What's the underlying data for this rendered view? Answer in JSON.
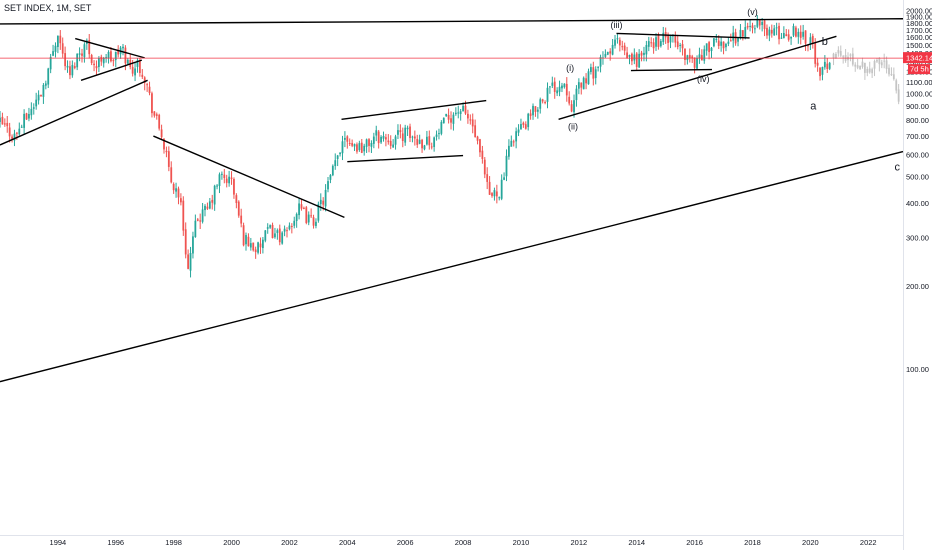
{
  "header": {
    "title": "SET INDEX, 1M, SET"
  },
  "price_tag": {
    "price": "1342.14",
    "countdown": "7d 5h",
    "color": "#f23645"
  },
  "colors": {
    "up": "#26a69a",
    "down": "#ef5350",
    "projection": "#c4c4c4",
    "trendline": "#000000",
    "axis_text": "#131722",
    "price_line": "#f23645"
  },
  "chart_data": {
    "type": "candlestick",
    "title": "SET INDEX, 1M, SET",
    "xlabel": "",
    "ylabel": "",
    "x_tick_labels": [
      "1994",
      "1996",
      "1998",
      "2000",
      "2002",
      "2004",
      "2006",
      "2008",
      "2010",
      "2012",
      "2014",
      "2016",
      "2018",
      "2020",
      "2022"
    ],
    "y_tick_labels": [
      "100.00",
      "200.00",
      "300.00",
      "400.00",
      "500.00",
      "600.00",
      "700.00",
      "800.00",
      "900.00",
      "1000.00",
      "1100.00",
      "1200.00",
      "1300.00",
      "1400.00",
      "1500.00",
      "1600.00",
      "1700.00",
      "1800.00",
      "1900.00",
      "2000.00"
    ],
    "ylim": [
      25,
      2040
    ],
    "xlim": [
      1992.0,
      2023.2
    ],
    "last_price": 1342.14,
    "series": [
      {
        "kind": "price",
        "points": [
          [
            1992.0,
            780
          ],
          [
            1992.5,
            700
          ],
          [
            1993.0,
            850
          ],
          [
            1993.4,
            1000
          ],
          [
            1993.7,
            1250
          ],
          [
            1994.0,
            1690
          ],
          [
            1994.15,
            1400
          ],
          [
            1994.4,
            1150
          ],
          [
            1994.7,
            1400
          ],
          [
            1995.0,
            1520
          ],
          [
            1995.3,
            1230
          ],
          [
            1995.6,
            1400
          ],
          [
            1995.9,
            1320
          ],
          [
            1996.2,
            1460
          ],
          [
            1996.5,
            1230
          ],
          [
            1996.8,
            1280
          ],
          [
            1997.0,
            1150
          ],
          [
            1997.3,
            850
          ],
          [
            1997.6,
            700
          ],
          [
            1997.9,
            480
          ],
          [
            1998.2,
            430
          ],
          [
            1998.5,
            230
          ],
          [
            1998.8,
            350
          ],
          [
            1999.2,
            380
          ],
          [
            1999.6,
            500
          ],
          [
            2000.0,
            480
          ],
          [
            2000.4,
            300
          ],
          [
            2000.9,
            270
          ],
          [
            2001.3,
            320
          ],
          [
            2001.8,
            300
          ],
          [
            2002.3,
            380
          ],
          [
            2002.8,
            340
          ],
          [
            2003.2,
            420
          ],
          [
            2003.6,
            560
          ],
          [
            2003.9,
            720
          ],
          [
            2004.2,
            650
          ],
          [
            2004.6,
            640
          ],
          [
            2005.0,
            700
          ],
          [
            2005.5,
            680
          ],
          [
            2006.0,
            720
          ],
          [
            2006.5,
            670
          ],
          [
            2007.0,
            680
          ],
          [
            2007.5,
            820
          ],
          [
            2007.9,
            880
          ],
          [
            2008.3,
            780
          ],
          [
            2008.7,
            530
          ],
          [
            2008.9,
            420
          ],
          [
            2009.3,
            450
          ],
          [
            2009.7,
            700
          ],
          [
            2010.2,
            780
          ],
          [
            2010.6,
            920
          ],
          [
            2011.0,
            1040
          ],
          [
            2011.5,
            1100
          ],
          [
            2011.8,
            880
          ],
          [
            2012.0,
            1070
          ],
          [
            2012.5,
            1200
          ],
          [
            2012.9,
            1340
          ],
          [
            2013.3,
            1560
          ],
          [
            2013.6,
            1350
          ],
          [
            2014.0,
            1320
          ],
          [
            2014.5,
            1520
          ],
          [
            2014.9,
            1580
          ],
          [
            2015.3,
            1540
          ],
          [
            2015.7,
            1380
          ],
          [
            2016.0,
            1300
          ],
          [
            2016.5,
            1480
          ],
          [
            2016.9,
            1520
          ],
          [
            2017.3,
            1580
          ],
          [
            2017.8,
            1700
          ],
          [
            2018.1,
            1820
          ],
          [
            2018.4,
            1720
          ],
          [
            2018.8,
            1650
          ],
          [
            2019.2,
            1630
          ],
          [
            2019.5,
            1700
          ],
          [
            2019.9,
            1590
          ],
          [
            2020.1,
            1500
          ],
          [
            2020.3,
            1110
          ],
          [
            2020.5,
            1250
          ],
          [
            2020.7,
            1340
          ]
        ]
      },
      {
        "kind": "projection",
        "points": [
          [
            2020.8,
            1400
          ],
          [
            2021.2,
            1350
          ],
          [
            2021.6,
            1300
          ],
          [
            2021.9,
            1250
          ],
          [
            2022.2,
            1260
          ],
          [
            2022.5,
            1300
          ],
          [
            2022.8,
            1220
          ],
          [
            2023.0,
            1050
          ],
          [
            2023.1,
            900
          ]
        ]
      }
    ],
    "annotations": [
      {
        "label": "(i)",
        "x": 2011.7,
        "y": 1205
      },
      {
        "label": "(ii)",
        "x": 2011.8,
        "y": 740
      },
      {
        "label": "(iii)",
        "x": 2013.3,
        "y": 1728
      },
      {
        "label": "(iv)",
        "x": 2016.3,
        "y": 1098
      },
      {
        "label": "(v)",
        "x": 2018.0,
        "y": 1925
      },
      {
        "label": "a",
        "x": 2020.1,
        "y": 875
      },
      {
        "label": "b",
        "x": 2020.5,
        "y": 1500
      },
      {
        "label": "c",
        "x": 2023.0,
        "y": 525
      }
    ],
    "trendlines": [
      [
        [
          1992.0,
          1785
        ],
        [
          2023.2,
          1865
        ]
      ],
      [
        [
          1992.0,
          90
        ],
        [
          2023.2,
          615
        ]
      ],
      [
        [
          1992.0,
          650
        ],
        [
          1997.1,
          1115
        ]
      ],
      [
        [
          1994.6,
          1580
        ],
        [
          1997.0,
          1345
        ]
      ],
      [
        [
          1994.8,
          1115
        ],
        [
          1996.9,
          1320
        ]
      ],
      [
        [
          1997.3,
          700
        ],
        [
          2003.9,
          355
        ]
      ],
      [
        [
          2003.8,
          805
        ],
        [
          2008.8,
          942
        ]
      ],
      [
        [
          2004.0,
          565
        ],
        [
          2008.0,
          595
        ]
      ],
      [
        [
          2011.3,
          805
        ],
        [
          2020.9,
          1610
        ]
      ],
      [
        [
          2013.3,
          1650
        ],
        [
          2017.9,
          1588
        ]
      ],
      [
        [
          2013.8,
          1210
        ],
        [
          2016.6,
          1220
        ]
      ]
    ]
  }
}
